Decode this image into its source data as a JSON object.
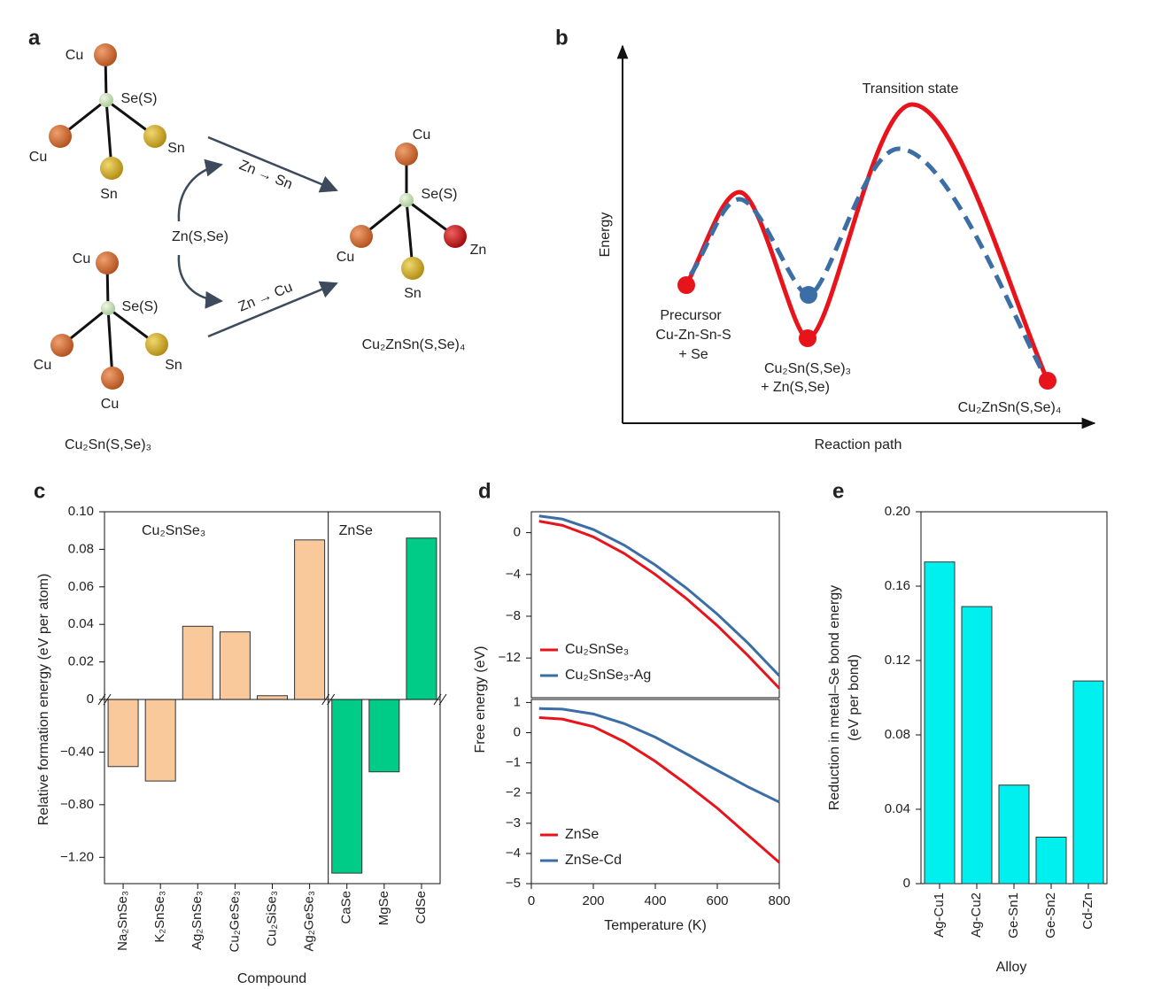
{
  "panel_a": {
    "label": "a",
    "top_structure": {
      "atoms": [
        "Cu",
        "Se(S)",
        "Cu",
        "Sn",
        "Sn"
      ]
    },
    "bottom_structure": {
      "atoms": [
        "Cu",
        "Se(S)",
        "Cu",
        "Sn",
        "Cu"
      ],
      "name": "Cu₂Sn(S,Se)₃"
    },
    "reagent": "Zn(S,Se)",
    "arrows": [
      "Zn → Sn",
      "Zn → Cu"
    ],
    "product": {
      "atoms": [
        "Cu",
        "Se(S)",
        "Cu",
        "Zn",
        "Sn"
      ],
      "name": "Cu₂ZnSn(S,Se)₄"
    }
  },
  "panel_b": {
    "label": "b",
    "ylabel": "Energy",
    "xlabel": "Reaction path",
    "transition_label": "Transition state",
    "precursor": [
      "Precursor",
      "Cu-Zn-Sn-S",
      "+ Se"
    ],
    "intermediate": [
      "Cu₂Sn(S,Se)₃",
      "+ Zn(S,Se)"
    ],
    "product": "Cu₂ZnSn(S,Se)₄"
  },
  "chart_data": [
    {
      "type": "bar",
      "panel": "c",
      "ylabel": "Relative formation energy (eV per atom)",
      "xlabel": "Compound",
      "categories": [
        "Na₂SnSe₃",
        "K₂SnSe₃",
        "Ag₂SnSe₃",
        "Cu₂GeSe₃",
        "Cu₂SiSe₃",
        "Ag₂GeSe₃",
        "CaSe",
        "MgSe",
        "CdSe"
      ],
      "values": [
        -0.51,
        -0.62,
        0.039,
        0.036,
        0.002,
        0.085,
        -1.32,
        -0.55,
        0.086
      ],
      "groups": [
        {
          "name": "Cu₂SnSe₃",
          "size": 6,
          "color": "#f9c89b"
        },
        {
          "name": "ZnSe",
          "size": 3,
          "color": "#00cc88"
        }
      ],
      "ylim_upper": [
        0,
        0.1
      ],
      "ylim_lower": [
        -1.4,
        0
      ],
      "yticks": [
        {
          "value": 0.1,
          "label": "0.10"
        },
        0.08,
        0.06,
        0.04,
        0.02,
        0,
        {
          "value": -0.4,
          "label": "−0.40"
        },
        {
          "value": -0.8,
          "label": "−0.80"
        },
        {
          "value": -1.2,
          "label": "−1.20"
        }
      ]
    },
    {
      "type": "line",
      "panel": "d",
      "ylabel": "Free energy (eV)",
      "x": [
        25,
        100,
        200,
        300,
        400,
        500,
        600,
        700,
        800
      ],
      "xlim": [
        0,
        800
      ],
      "ylim": [
        -15.8,
        2
      ],
      "yticks": [
        0,
        {
          "value": -4,
          "label": "−4"
        },
        {
          "value": -8,
          "label": "−8"
        },
        {
          "value": -12,
          "label": "−12"
        }
      ],
      "series": [
        {
          "name": "Cu₂SnSe₃",
          "color": "#e8141c",
          "values": [
            1.1,
            0.7,
            -0.4,
            -2.0,
            -4.0,
            -6.3,
            -8.9,
            -11.8,
            -14.9
          ]
        },
        {
          "name": "Cu₂SnSe₃-Ag",
          "color": "#3a6ea5",
          "values": [
            1.6,
            1.3,
            0.3,
            -1.2,
            -3.1,
            -5.3,
            -7.8,
            -10.6,
            -13.7
          ]
        }
      ]
    },
    {
      "type": "line",
      "xlabel": "Temperature (K)",
      "x": [
        25,
        100,
        200,
        300,
        400,
        500,
        600,
        700,
        800
      ],
      "xlim": [
        0,
        800
      ],
      "xticks": [
        0,
        200,
        400,
        600,
        800
      ],
      "ylim": [
        -5,
        1.1
      ],
      "yticks": [
        1,
        0,
        {
          "value": -1,
          "label": "−1"
        },
        {
          "value": -2,
          "label": "−2"
        },
        {
          "value": -3,
          "label": "−3"
        },
        {
          "value": -4,
          "label": "−4"
        },
        {
          "value": -5,
          "label": "−5"
        }
      ],
      "series": [
        {
          "name": "ZnSe",
          "color": "#e8141c",
          "values": [
            0.5,
            0.45,
            0.2,
            -0.3,
            -0.95,
            -1.7,
            -2.5,
            -3.4,
            -4.3
          ]
        },
        {
          "name": "ZnSe-Cd",
          "color": "#3a6ea5",
          "values": [
            0.8,
            0.78,
            0.62,
            0.3,
            -0.15,
            -0.7,
            -1.25,
            -1.8,
            -2.3
          ]
        }
      ]
    },
    {
      "type": "bar",
      "panel": "e",
      "ylabel": [
        "Reduction in metal–Se bond energy",
        "(eV per bond)"
      ],
      "xlabel": "Alloy",
      "categories": [
        "Ag-Cu1",
        "Ag-Cu2",
        "Ge-Sn1",
        "Ge-Sn2",
        "Cd-Zn"
      ],
      "values": [
        0.173,
        0.149,
        0.053,
        0.025,
        0.109
      ],
      "color": "#00f0f0",
      "ylim": [
        0,
        0.2
      ],
      "yticks": [
        0,
        0.04,
        0.08,
        0.12,
        0.16,
        {
          "value": 0.2,
          "label": "0.20"
        }
      ]
    }
  ]
}
